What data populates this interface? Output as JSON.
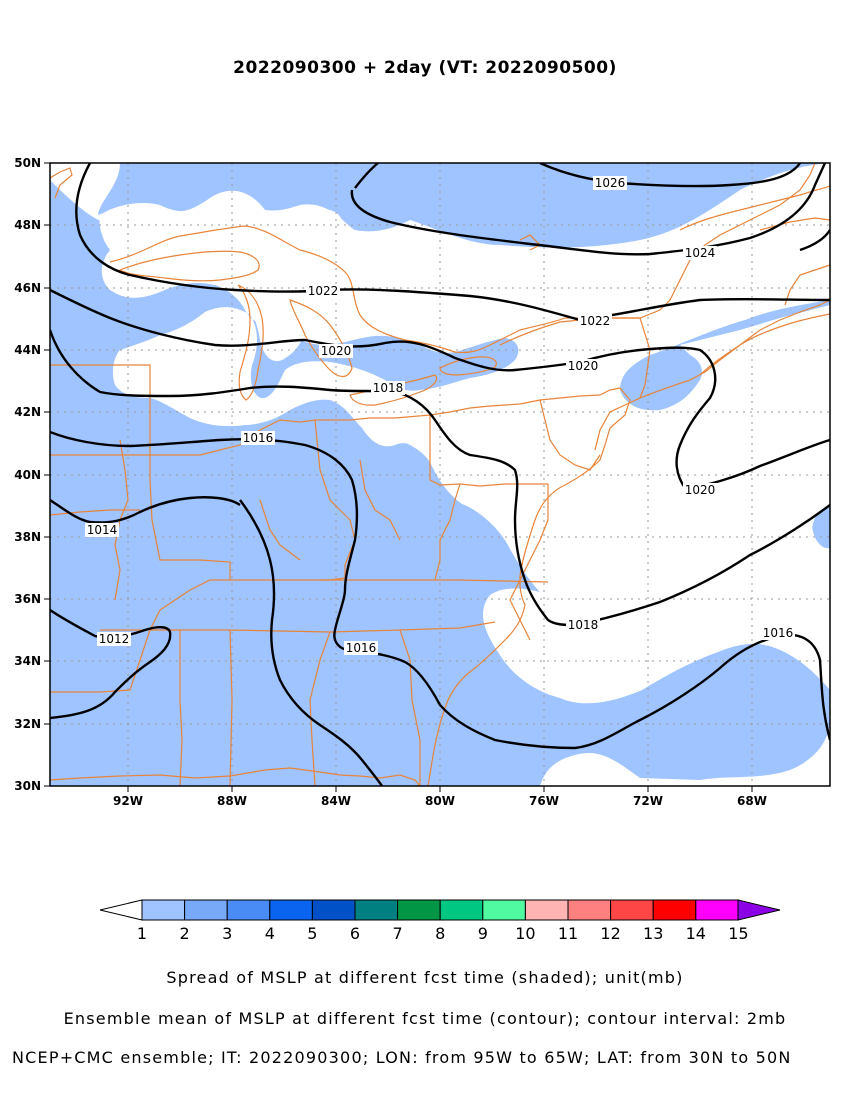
{
  "title": "2022090300 + 2day (VT: 2022090500)",
  "axes": {
    "lat_labels": [
      "50N",
      "48N",
      "46N",
      "44N",
      "42N",
      "40N",
      "38N",
      "36N",
      "34N",
      "32N",
      "30N"
    ],
    "lon_labels": [
      "92W",
      "88W",
      "84W",
      "80W",
      "76W",
      "72W",
      "68W"
    ]
  },
  "contour_labels": [
    "1026",
    "1024",
    "1022",
    "1022",
    "1020",
    "1020",
    "1020",
    "1018",
    "1018",
    "1016",
    "1016",
    "1016",
    "1014",
    "1012"
  ],
  "colorbar": {
    "labels": [
      "1",
      "2",
      "3",
      "4",
      "5",
      "6",
      "7",
      "8",
      "9",
      "10",
      "11",
      "12",
      "13",
      "14",
      "15"
    ],
    "colors": [
      "#a0c4ff",
      "#78a8f8",
      "#4a8cf5",
      "#0a64f0",
      "#0050c8",
      "#008080",
      "#009646",
      "#00c882",
      "#50faa0",
      "#ffb4b4",
      "#ff8080",
      "#ff4646",
      "#ff0000",
      "#ff00ff",
      "#8c00e6"
    ]
  },
  "colors": {
    "spread_shade": "#a0c4ff",
    "borders": "#e8843a",
    "contour": "#000000",
    "grid": "#9a9a9a"
  },
  "captions": {
    "line1": "Spread of MSLP at different fcst time (shaded); unit(mb)",
    "line2": "Ensemble mean of MSLP at different fcst time (contour); contour interval: 2mb",
    "line3": "NCEP+CMC ensemble; IT: 2022090300; LON: from 95W to 65W; LAT: from 30N to 50N"
  }
}
